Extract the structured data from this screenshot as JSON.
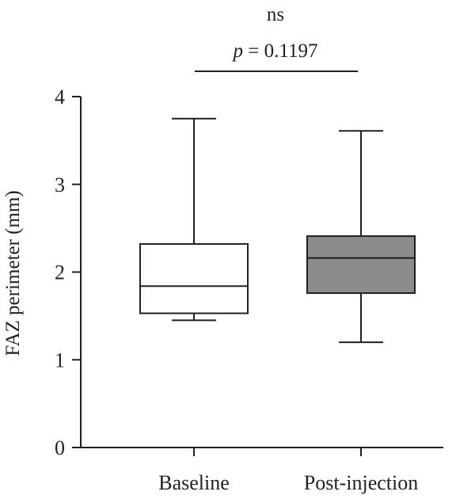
{
  "chart_data": {
    "type": "box",
    "title": "",
    "ylabel": "FAZ perimeter (mm)",
    "xlabel": "",
    "ylim": [
      0,
      4
    ],
    "yticks": [
      "0",
      "1",
      "2",
      "3",
      "4"
    ],
    "categories": [
      "Baseline",
      "Post-injection"
    ],
    "series": [
      {
        "category": "Baseline",
        "min": 1.45,
        "q1": 1.53,
        "median": 1.84,
        "q3": 2.32,
        "max": 3.75,
        "fill": "#ffffff"
      },
      {
        "category": "Post-injection",
        "min": 1.2,
        "q1": 1.76,
        "median": 2.16,
        "q3": 2.41,
        "max": 3.61,
        "fill": "#8c8c8c"
      }
    ],
    "annotation": {
      "label": "ns",
      "p_symbol": "p",
      "p_rest": " = 0.1197"
    }
  }
}
